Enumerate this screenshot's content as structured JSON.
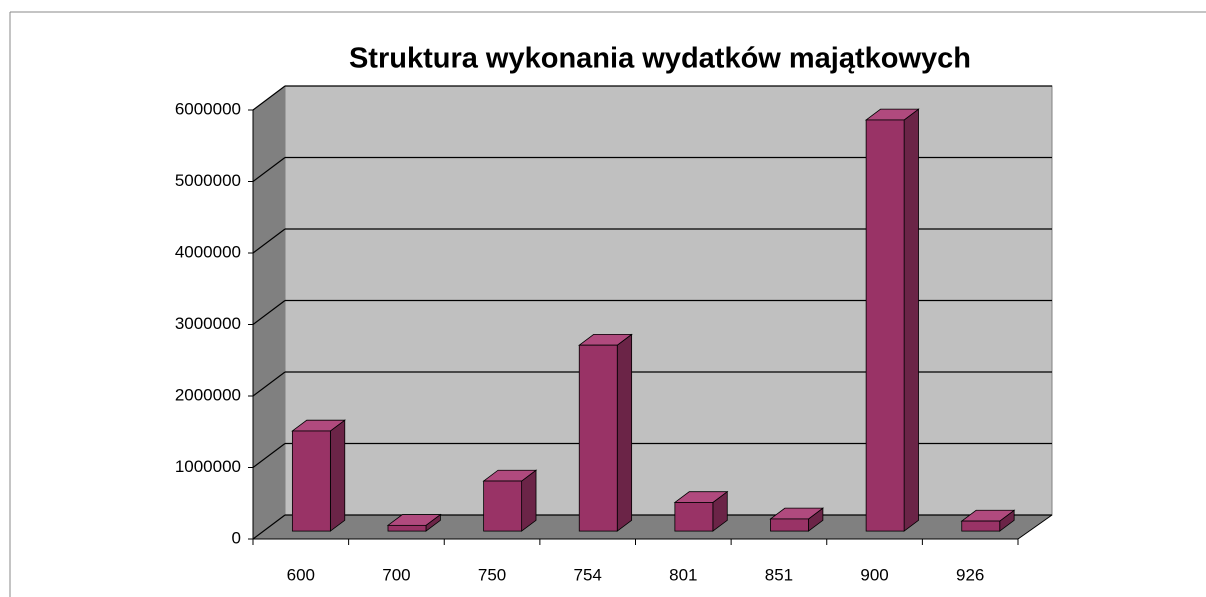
{
  "chart_data": {
    "type": "bar3d",
    "title": "Struktura wykonania wydatków majątkowych",
    "categories": [
      "600",
      "700",
      "750",
      "754",
      "801",
      "851",
      "900",
      "926"
    ],
    "values": [
      1400000,
      80000,
      700000,
      2600000,
      400000,
      170000,
      5750000,
      140000
    ],
    "color": "#993366",
    "ylim": [
      0,
      6000000
    ],
    "yticks": [
      0,
      1000000,
      2000000,
      3000000,
      4000000,
      5000000,
      6000000
    ],
    "grid": true
  }
}
